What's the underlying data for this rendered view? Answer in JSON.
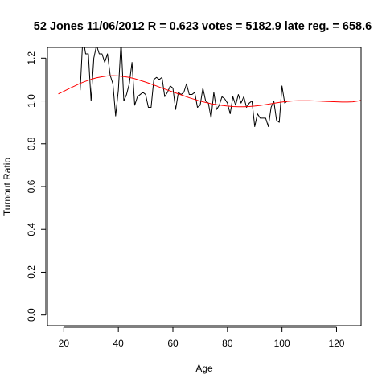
{
  "chart_data": {
    "type": "line",
    "title": "52 Jones 11/06/2012 R = 0.623 votes = 5182.9 late reg. = 658.6",
    "xlabel": "Age",
    "ylabel": "Turnout Ratio",
    "xlim": [
      14,
      129
    ],
    "ylim": [
      -0.05,
      1.25
    ],
    "x_ticks": [
      20,
      40,
      60,
      80,
      100,
      120
    ],
    "y_ticks": [
      0.0,
      0.2,
      0.4,
      0.6,
      0.8,
      1.0,
      1.2
    ],
    "x_tick_labels": [
      "20",
      "40",
      "60",
      "80",
      "100",
      "120"
    ],
    "y_tick_labels": [
      "0.0",
      "0.2",
      "0.4",
      "0.6",
      "0.8",
      "1.0",
      "1.2"
    ],
    "reference_line": {
      "y": 1.0,
      "color": "#000000"
    },
    "series": [
      {
        "color": "#000000",
        "x": [
          26,
          27,
          28,
          29,
          30,
          31,
          32,
          33,
          34,
          35,
          36,
          37,
          38,
          39,
          40,
          41,
          42,
          43,
          44,
          45,
          46,
          47,
          48,
          49,
          50,
          51,
          52,
          53,
          54,
          55,
          56,
          57,
          58,
          59,
          60,
          61,
          62,
          63,
          64,
          65,
          66,
          67,
          68,
          69,
          70,
          71,
          72,
          73,
          74,
          75,
          76,
          77,
          78,
          79,
          80,
          81,
          82,
          83,
          84,
          85,
          86,
          87,
          88,
          89,
          90,
          91,
          92,
          93,
          94,
          95,
          96,
          97,
          98,
          99,
          100,
          101,
          102
        ],
        "values": [
          1.05,
          1.3,
          1.22,
          1.22,
          1.0,
          1.2,
          1.26,
          1.22,
          1.22,
          1.18,
          1.22,
          1.12,
          1.08,
          0.93,
          1.05,
          1.28,
          1.0,
          1.03,
          1.08,
          1.18,
          0.98,
          1.02,
          1.03,
          1.04,
          1.03,
          0.97,
          0.97,
          1.1,
          1.11,
          1.1,
          1.11,
          1.02,
          1.04,
          1.07,
          1.06,
          0.96,
          1.04,
          1.03,
          1.04,
          1.08,
          1.03,
          1.03,
          1.04,
          0.97,
          0.98,
          1.06,
          1.0,
          0.99,
          0.92,
          1.04,
          0.96,
          0.98,
          1.02,
          1.01,
          0.99,
          0.94,
          1.02,
          0.98,
          1.03,
          0.99,
          1.02,
          0.97,
          0.99,
          1.0,
          0.88,
          0.94,
          0.92,
          0.92,
          0.92,
          0.88,
          0.97,
          1.0,
          0.91,
          0.9,
          1.07,
          0.99,
          1.0
        ]
      },
      {
        "color": "#ff0000",
        "x": [
          18,
          20,
          22,
          24,
          26,
          28,
          30,
          32,
          34,
          36,
          38,
          40,
          42,
          44,
          46,
          48,
          50,
          52,
          54,
          56,
          58,
          60,
          62,
          64,
          66,
          68,
          70,
          72,
          74,
          76,
          78,
          80,
          82,
          84,
          86,
          88,
          90,
          92,
          94,
          96,
          98,
          100,
          102,
          104,
          106,
          108,
          110,
          112,
          114,
          116,
          118,
          120,
          122,
          124,
          126,
          128,
          129
        ],
        "values": [
          1.033,
          1.045,
          1.058,
          1.07,
          1.082,
          1.092,
          1.101,
          1.108,
          1.113,
          1.117,
          1.118,
          1.117,
          1.114,
          1.11,
          1.104,
          1.096,
          1.088,
          1.079,
          1.07,
          1.06,
          1.051,
          1.042,
          1.033,
          1.024,
          1.015,
          1.007,
          0.999,
          0.993,
          0.987,
          0.983,
          0.979,
          0.976,
          0.974,
          0.973,
          0.973,
          0.974,
          0.976,
          0.979,
          0.983,
          0.987,
          0.991,
          0.995,
          0.998,
          1.0,
          1.001,
          1.001,
          1.001,
          1.0,
          0.999,
          0.998,
          0.997,
          0.996,
          0.995,
          0.995,
          0.996,
          1.0,
          1.003
        ]
      }
    ]
  }
}
